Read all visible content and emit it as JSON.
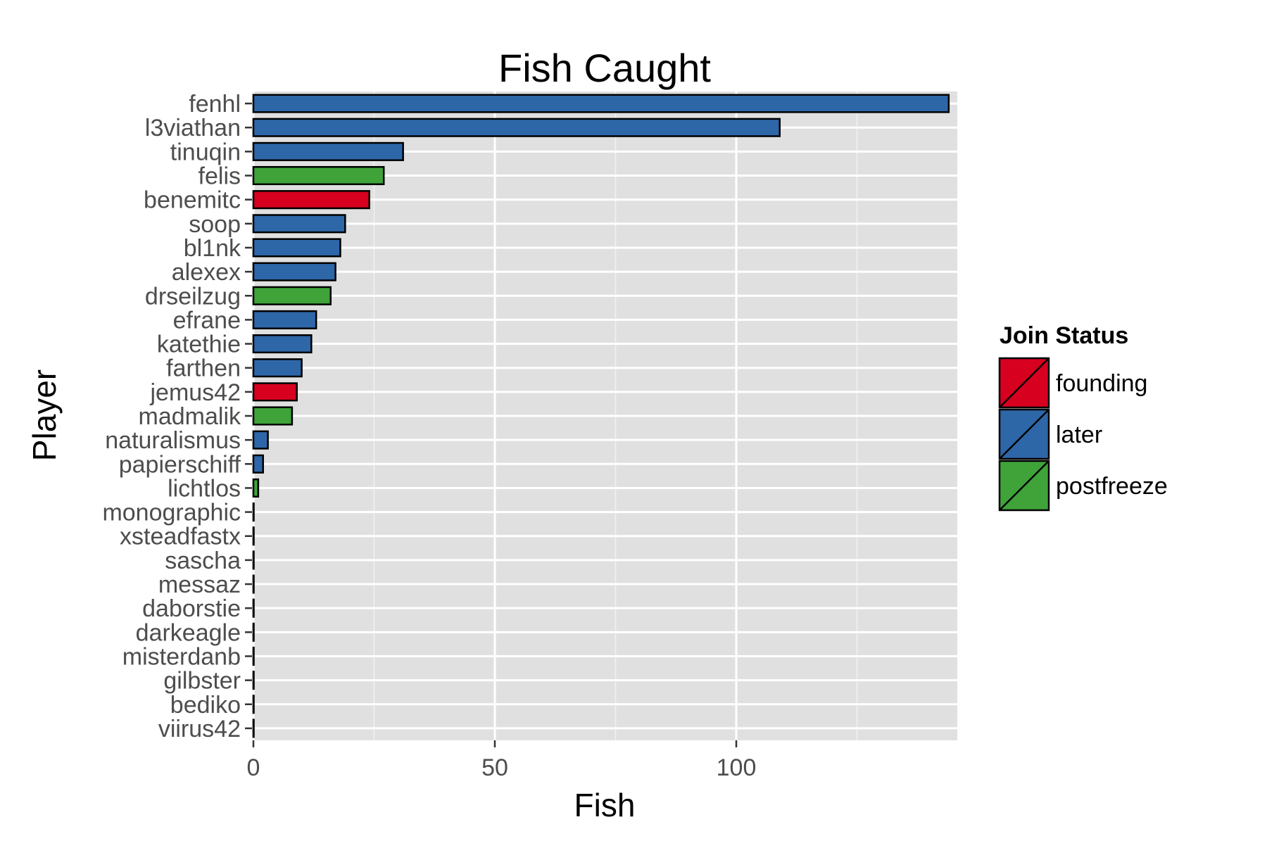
{
  "chart_data": {
    "type": "bar",
    "orientation": "horizontal",
    "title": "Fish Caught",
    "xlabel": "Fish",
    "ylabel": "Player",
    "xlim": [
      0,
      146
    ],
    "xticks": [
      0,
      50,
      100
    ],
    "grid": true,
    "legend": {
      "title": "Join Status",
      "placement": "right",
      "entries": [
        "founding",
        "later",
        "postfreeze"
      ]
    },
    "colors": {
      "founding": "#d7001f",
      "later": "#2e67a8",
      "postfreeze": "#3fa33a"
    },
    "categories": [
      "fenhl",
      "l3viathan",
      "tinuqin",
      "felis",
      "benemitc",
      "soop",
      "bl1nk",
      "alexex",
      "drseilzug",
      "efrane",
      "katethie",
      "farthen",
      "jemus42",
      "madmalik",
      "naturalismus",
      "papierschiff",
      "lichtlos",
      "monographic",
      "xsteadfastx",
      "sascha",
      "messaz",
      "daborstie",
      "darkeagle",
      "misterdanb",
      "gilbster",
      "bediko",
      "viirus42"
    ],
    "values": [
      144,
      109,
      31,
      27,
      24,
      19,
      18,
      17,
      16,
      13,
      12,
      10,
      9,
      8,
      3,
      2,
      1,
      0,
      0,
      0,
      0,
      0,
      0,
      0,
      0,
      0,
      0
    ],
    "groups": [
      "later",
      "later",
      "later",
      "postfreeze",
      "founding",
      "later",
      "later",
      "later",
      "postfreeze",
      "later",
      "later",
      "later",
      "founding",
      "postfreeze",
      "later",
      "later",
      "postfreeze",
      "later",
      "later",
      "later",
      "later",
      "later",
      "later",
      "later",
      "later",
      "later",
      "later"
    ]
  }
}
